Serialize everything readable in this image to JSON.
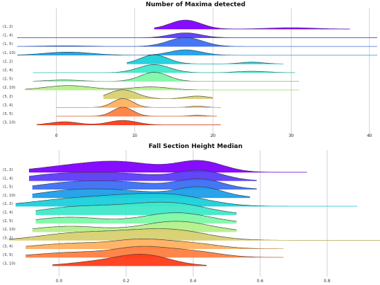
{
  "chart_data": [
    {
      "type": "ridgeline",
      "title": "Number of Maxima detected",
      "xlim": [
        -5,
        41
      ],
      "xticks": [
        0,
        10,
        20,
        30,
        40
      ],
      "grid": true,
      "categories": [
        "(1, 2)",
        "(1, 4)",
        "(1, 5)",
        "(1, 10)",
        "(2, 2)",
        "(2, 4)",
        "(2, 5)",
        "(2, 10)",
        "(3, 2)",
        "(3, 4)",
        "(3, 5)",
        "(3, 10)"
      ],
      "series": [
        {
          "range": [
            12.5,
            37.5
          ],
          "peaks": [
            [
              16.5,
              1.0,
              2.0
            ],
            [
              30.0,
              0.15,
              3.0
            ]
          ]
        },
        {
          "range": [
            -5,
            41
          ],
          "peaks": [
            [
              16.5,
              0.55,
              2.0
            ]
          ]
        },
        {
          "range": [
            -5,
            41
          ],
          "peaks": [
            [
              16.5,
              1.0,
              2.2
            ],
            [
              1.0,
              0.08,
              3.0
            ]
          ]
        },
        {
          "range": [
            -5,
            41
          ],
          "peaks": [
            [
              16.5,
              0.6,
              2.0
            ],
            [
              1.5,
              0.35,
              3.0
            ]
          ]
        },
        {
          "range": [
            9.0,
            29.0
          ],
          "peaks": [
            [
              12.5,
              1.0,
              1.8
            ],
            [
              25.0,
              0.2,
              1.5
            ]
          ]
        },
        {
          "range": [
            -3,
            30.5
          ],
          "peaks": [
            [
              12.5,
              0.9,
              2.0
            ],
            [
              25.0,
              0.15,
              2.0
            ]
          ]
        },
        {
          "range": [
            -3,
            31.0
          ],
          "peaks": [
            [
              12.5,
              1.0,
              1.8
            ],
            [
              1.0,
              0.15,
              2.0
            ]
          ]
        },
        {
          "range": [
            -4,
            31.0
          ],
          "peaks": [
            [
              1.5,
              0.5,
              3.0
            ],
            [
              12.0,
              0.35,
              2.5
            ]
          ]
        },
        {
          "range": [
            6.0,
            20.0
          ],
          "peaks": [
            [
              8.5,
              1.0,
              1.8
            ],
            [
              18.0,
              0.3,
              1.5
            ]
          ]
        },
        {
          "range": [
            0,
            21.0
          ],
          "peaks": [
            [
              8.5,
              1.0,
              1.3
            ],
            [
              18.0,
              0.15,
              1.0
            ]
          ]
        },
        {
          "range": [
            0,
            20.5
          ],
          "peaks": [
            [
              8.5,
              1.0,
              1.3
            ],
            [
              18.0,
              0.1,
              1.0
            ]
          ]
        },
        {
          "range": [
            -2.5,
            21.0
          ],
          "peaks": [
            [
              1.0,
              0.35,
              1.8
            ],
            [
              8.5,
              0.5,
              1.8
            ]
          ]
        }
      ]
    },
    {
      "type": "ridgeline",
      "title": "Fall Section Height Median",
      "xlim": [
        -0.125,
        0.95
      ],
      "xticks": [
        0.0,
        0.2,
        0.4,
        0.6,
        0.8
      ],
      "grid": true,
      "categories": [
        "(1, 2)",
        "(1, 4)",
        "(1, 5)",
        "(1, 10)",
        "(2, 2)",
        "(2, 4)",
        "(2, 5)",
        "(2, 10)",
        "(3, 2)",
        "(3, 4)",
        "(3, 5)",
        "(3, 10)"
      ],
      "series": [
        {
          "range": [
            -0.09,
            0.74
          ],
          "peaks": [
            [
              0.05,
              0.55,
              0.12
            ],
            [
              0.2,
              0.7,
              0.1
            ],
            [
              0.42,
              1.0,
              0.07
            ]
          ]
        },
        {
          "range": [
            -0.09,
            0.59
          ],
          "peaks": [
            [
              0.0,
              0.6,
              0.1
            ],
            [
              0.2,
              0.6,
              0.1
            ],
            [
              0.42,
              0.9,
              0.07
            ]
          ]
        },
        {
          "range": [
            -0.08,
            0.59
          ],
          "peaks": [
            [
              0.03,
              0.55,
              0.1
            ],
            [
              0.2,
              0.55,
              0.1
            ],
            [
              0.42,
              0.9,
              0.07
            ]
          ]
        },
        {
          "range": [
            -0.08,
            0.57
          ],
          "peaks": [
            [
              0.03,
              0.6,
              0.1
            ],
            [
              0.2,
              0.55,
              0.1
            ],
            [
              0.42,
              0.95,
              0.07
            ]
          ]
        },
        {
          "range": [
            -0.13,
            0.89
          ],
          "peaks": [
            [
              0.03,
              0.6,
              0.12
            ],
            [
              0.2,
              0.6,
              0.1
            ],
            [
              0.35,
              0.85,
              0.1
            ]
          ]
        },
        {
          "range": [
            -0.07,
            0.53
          ],
          "peaks": [
            [
              0.03,
              0.6,
              0.1
            ],
            [
              0.2,
              0.55,
              0.1
            ],
            [
              0.35,
              0.9,
              0.1
            ]
          ]
        },
        {
          "range": [
            -0.07,
            0.53
          ],
          "peaks": [
            [
              0.03,
              0.55,
              0.1
            ],
            [
              0.35,
              0.95,
              0.1
            ]
          ]
        },
        {
          "range": [
            -0.08,
            0.53
          ],
          "peaks": [
            [
              0.03,
              0.5,
              0.1
            ],
            [
              0.35,
              0.95,
              0.1
            ]
          ]
        },
        {
          "range": [
            -0.15,
            0.96
          ],
          "peaks": [
            [
              0.03,
              0.55,
              0.1
            ],
            [
              0.2,
              0.55,
              0.1
            ],
            [
              0.35,
              0.8,
              0.1
            ]
          ]
        },
        {
          "range": [
            -0.1,
            0.67
          ],
          "peaks": [
            [
              0.05,
              0.5,
              0.12
            ],
            [
              0.25,
              0.7,
              0.08
            ],
            [
              0.4,
              0.45,
              0.08
            ]
          ]
        },
        {
          "range": [
            -0.1,
            0.67
          ],
          "peaks": [
            [
              0.05,
              0.45,
              0.12
            ],
            [
              0.25,
              0.8,
              0.08
            ],
            [
              0.4,
              0.5,
              0.08
            ]
          ]
        },
        {
          "range": [
            -0.02,
            0.44
          ],
          "peaks": [
            [
              0.25,
              1.0,
              0.08
            ],
            [
              0.1,
              0.3,
              0.08
            ]
          ]
        }
      ]
    }
  ]
}
